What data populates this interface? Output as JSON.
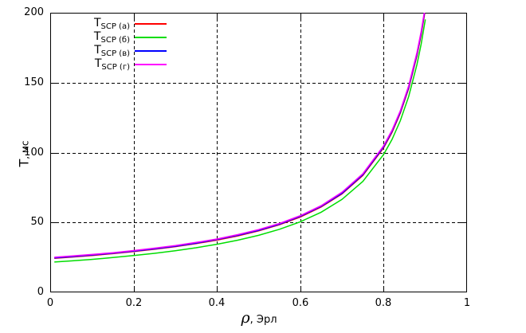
{
  "axes": {
    "ylabel_main": "T",
    "ylabel_rest": ", мс",
    "xlabel_symbol": "ρ",
    "xlabel_rest": ", Эрл",
    "y_tick_labels": [
      "0",
      "50",
      "100",
      "150",
      "200"
    ],
    "x_tick_labels": [
      "0",
      "0.2",
      "0.4",
      "0.6",
      "0.8",
      "1"
    ]
  },
  "legend": {
    "entries": [
      {
        "main": "T",
        "sub": "SCP (а)",
        "color": "#ff0000"
      },
      {
        "main": "T",
        "sub": "SCP (б)",
        "color": "#00dd00"
      },
      {
        "main": "T",
        "sub": "SCP (в)",
        "color": "#0000ff"
      },
      {
        "main": "T",
        "sub": "SCP (г)",
        "color": "#ff00ff"
      }
    ]
  },
  "chart_data": {
    "type": "line",
    "title": "",
    "xlabel": "ρ, Эрл",
    "ylabel": "T, мс",
    "xlim": [
      0,
      1
    ],
    "ylim": [
      0,
      200
    ],
    "x_ticks": [
      0,
      0.2,
      0.4,
      0.6,
      0.8,
      1
    ],
    "y_ticks": [
      0,
      50,
      100,
      150,
      200
    ],
    "grid": "dashed",
    "legend_position": "top-left-inside",
    "x": [
      0.01,
      0.05,
      0.1,
      0.15,
      0.2,
      0.25,
      0.3,
      0.35,
      0.4,
      0.45,
      0.5,
      0.55,
      0.6,
      0.65,
      0.7,
      0.75,
      0.8,
      0.82,
      0.84,
      0.86,
      0.88,
      0.89,
      0.9
    ],
    "series": [
      {
        "name": "T SCP (а)",
        "color": "#ff0000",
        "values": [
          24.4,
          25.2,
          26.4,
          27.7,
          29.2,
          30.8,
          32.7,
          34.9,
          37.4,
          40.4,
          44.0,
          48.4,
          53.9,
          61.0,
          70.4,
          83.6,
          103.4,
          114.4,
          128.2,
          145.8,
          169.4,
          184.4,
          202.4
        ]
      },
      {
        "name": "T SCP (б)",
        "color": "#00dd00",
        "values": [
          21.7,
          22.5,
          23.6,
          24.9,
          26.3,
          27.9,
          29.8,
          31.9,
          34.4,
          37.3,
          40.8,
          45.1,
          50.5,
          57.3,
          66.5,
          79.4,
          98.7,
          109.4,
          122.8,
          140.1,
          163.0,
          177.7,
          195.2
        ]
      },
      {
        "name": "T SCP (в)",
        "color": "#0000ff",
        "values": [
          24.7,
          25.5,
          26.7,
          28.0,
          29.5,
          31.1,
          33.0,
          35.2,
          37.8,
          40.8,
          44.4,
          48.8,
          54.4,
          61.5,
          70.9,
          84.2,
          104.1,
          115.2,
          129.0,
          146.7,
          170.4,
          185.5,
          203.6
        ]
      },
      {
        "name": "T SCP (г)",
        "color": "#ff00ff",
        "values": [
          25.1,
          26.0,
          27.1,
          28.4,
          29.9,
          31.6,
          33.5,
          35.7,
          38.2,
          41.3,
          44.9,
          49.3,
          54.9,
          62.0,
          71.6,
          84.9,
          104.9,
          116.0,
          129.9,
          147.8,
          171.6,
          186.7,
          204.9
        ]
      }
    ]
  }
}
